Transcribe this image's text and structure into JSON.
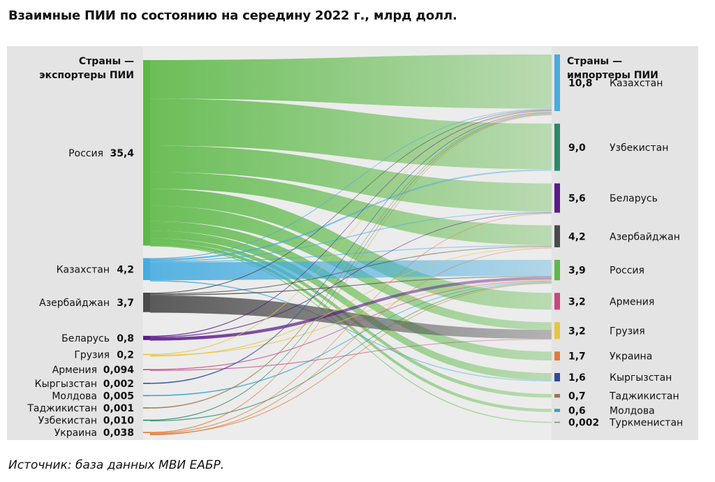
{
  "title": "Взаимные ПИИ по состоянию на середину 2022 г., млрд долл.",
  "source": "Источник: база данных МВИ ЕАБР.",
  "chart_data": {
    "type": "sankey",
    "left_header": [
      "Страны —",
      "экспортеры ПИИ"
    ],
    "right_header": [
      "Страны —",
      "импортеры ПИИ"
    ],
    "sources": [
      {
        "name": "Россия",
        "label": "35,4",
        "value": 35.4,
        "color": "#5cb947"
      },
      {
        "name": "Казахстан",
        "label": "4,2",
        "value": 4.2,
        "color": "#45ace0"
      },
      {
        "name": "Азербайджан",
        "label": "3,7",
        "value": 3.7,
        "color": "#4a4a4a"
      },
      {
        "name": "Беларусь",
        "label": "0,8",
        "value": 0.8,
        "color": "#5a1a8a"
      },
      {
        "name": "Грузия",
        "label": "0,2",
        "value": 0.2,
        "color": "#e8c53a"
      },
      {
        "name": "Армения",
        "label": "0,094",
        "value": 0.094,
        "color": "#c9457f"
      },
      {
        "name": "Кыргызстан",
        "label": "0,002",
        "value": 0.002,
        "color": "#2e4a9a"
      },
      {
        "name": "Молдова",
        "label": "0,005",
        "value": 0.005,
        "color": "#2aa3c4"
      },
      {
        "name": "Таджикистан",
        "label": "0,001",
        "value": 0.001,
        "color": "#9a7a4a"
      },
      {
        "name": "Узбекистан",
        "label": "0,010",
        "value": 0.01,
        "color": "#2a8a6a"
      },
      {
        "name": "Украина",
        "label": "0,038",
        "value": 0.038,
        "color": "#e07a3a"
      }
    ],
    "targets": [
      {
        "name": "Казахстан",
        "label": "10,8",
        "value": 10.8,
        "color": "#45ace0"
      },
      {
        "name": "Узбекистан",
        "label": "9,0",
        "value": 9.0,
        "color": "#2a8a6a"
      },
      {
        "name": "Беларусь",
        "label": "5,6",
        "value": 5.6,
        "color": "#5a1a8a"
      },
      {
        "name": "Азербайджан",
        "label": "4,2",
        "value": 4.2,
        "color": "#4a4a4a"
      },
      {
        "name": "Россия",
        "label": "3,9",
        "value": 3.9,
        "color": "#5cb947"
      },
      {
        "name": "Армения",
        "label": "3,2",
        "value": 3.2,
        "color": "#c9457f"
      },
      {
        "name": "Грузия",
        "label": "3,2",
        "value": 3.2,
        "color": "#e8c53a"
      },
      {
        "name": "Украина",
        "label": "1,7",
        "value": 1.7,
        "color": "#e07a3a"
      },
      {
        "name": "Кыргызстан",
        "label": "1,6",
        "value": 1.6,
        "color": "#2e4a9a"
      },
      {
        "name": "Таджикистан",
        "label": "0,7",
        "value": 0.7,
        "color": "#9a7a4a"
      },
      {
        "name": "Молдова",
        "label": "0,6",
        "value": 0.6,
        "color": "#2aa3c4"
      },
      {
        "name": "Туркменистан",
        "label": "0,002",
        "value": 0.002,
        "color": "#888888"
      }
    ],
    "flows": [
      {
        "from": "Россия",
        "to": "Казахстан",
        "value": 7.0
      },
      {
        "from": "Россия",
        "to": "Узбекистан",
        "value": 8.5
      },
      {
        "from": "Россия",
        "to": "Беларусь",
        "value": 4.8
      },
      {
        "from": "Россия",
        "to": "Азербайджан",
        "value": 3.0
      },
      {
        "from": "Россия",
        "to": "Армения",
        "value": 3.1
      },
      {
        "from": "Россия",
        "to": "Грузия",
        "value": 2.8
      },
      {
        "from": "Россия",
        "to": "Украина",
        "value": 1.7
      },
      {
        "from": "Россия",
        "to": "Кыргызстан",
        "value": 1.4
      },
      {
        "from": "Россия",
        "to": "Таджикистан",
        "value": 0.7
      },
      {
        "from": "Россия",
        "to": "Молдова",
        "value": 0.6
      },
      {
        "from": "Россия",
        "to": "Туркменистан",
        "value": 0.002
      },
      {
        "from": "Казахстан",
        "to": "Казахстан",
        "value": 0.05
      },
      {
        "from": "Казахстан",
        "to": "Узбекистан",
        "value": 0.3
      },
      {
        "from": "Казахстан",
        "to": "Беларусь",
        "value": 0.1
      },
      {
        "from": "Казахстан",
        "to": "Азербайджан",
        "value": 0.1
      },
      {
        "from": "Казахстан",
        "to": "Россия",
        "value": 3.4
      },
      {
        "from": "Казахстан",
        "to": "Кыргызстан",
        "value": 0.2
      },
      {
        "from": "Азербайджан",
        "to": "Казахстан",
        "value": 0.1
      },
      {
        "from": "Азербайджан",
        "to": "Азербайджан",
        "value": 0.1
      },
      {
        "from": "Азербайджан",
        "to": "Россия",
        "value": 0.2
      },
      {
        "from": "Азербайджан",
        "to": "Грузия",
        "value": 3.3
      },
      {
        "from": "Беларусь",
        "to": "Казахстан",
        "value": 0.1
      },
      {
        "from": "Беларусь",
        "to": "Беларусь",
        "value": 0.1
      },
      {
        "from": "Беларусь",
        "to": "Россия",
        "value": 0.6
      },
      {
        "from": "Грузия",
        "to": "Казахстан",
        "value": 0.05
      },
      {
        "from": "Грузия",
        "to": "Россия",
        "value": 0.05
      },
      {
        "from": "Грузия",
        "to": "Азербайджан",
        "value": 0.1
      },
      {
        "from": "Армения",
        "to": "Россия",
        "value": 0.05
      },
      {
        "from": "Армения",
        "to": "Грузия",
        "value": 0.044
      },
      {
        "from": "Кыргызстан",
        "to": "Казахстан",
        "value": 0.002
      },
      {
        "from": "Молдова",
        "to": "Россия",
        "value": 0.005
      },
      {
        "from": "Таджикистан",
        "to": "Казахстан",
        "value": 0.001
      },
      {
        "from": "Узбекистан",
        "to": "Казахстан",
        "value": 0.005
      },
      {
        "from": "Узбекистан",
        "to": "Россия",
        "value": 0.005
      },
      {
        "from": "Украина",
        "to": "Казахстан",
        "value": 0.01
      },
      {
        "from": "Украина",
        "to": "Беларусь",
        "value": 0.01
      },
      {
        "from": "Украина",
        "to": "Россия",
        "value": 0.01
      },
      {
        "from": "Украина",
        "to": "Азербайджан",
        "value": 0.008
      }
    ]
  }
}
